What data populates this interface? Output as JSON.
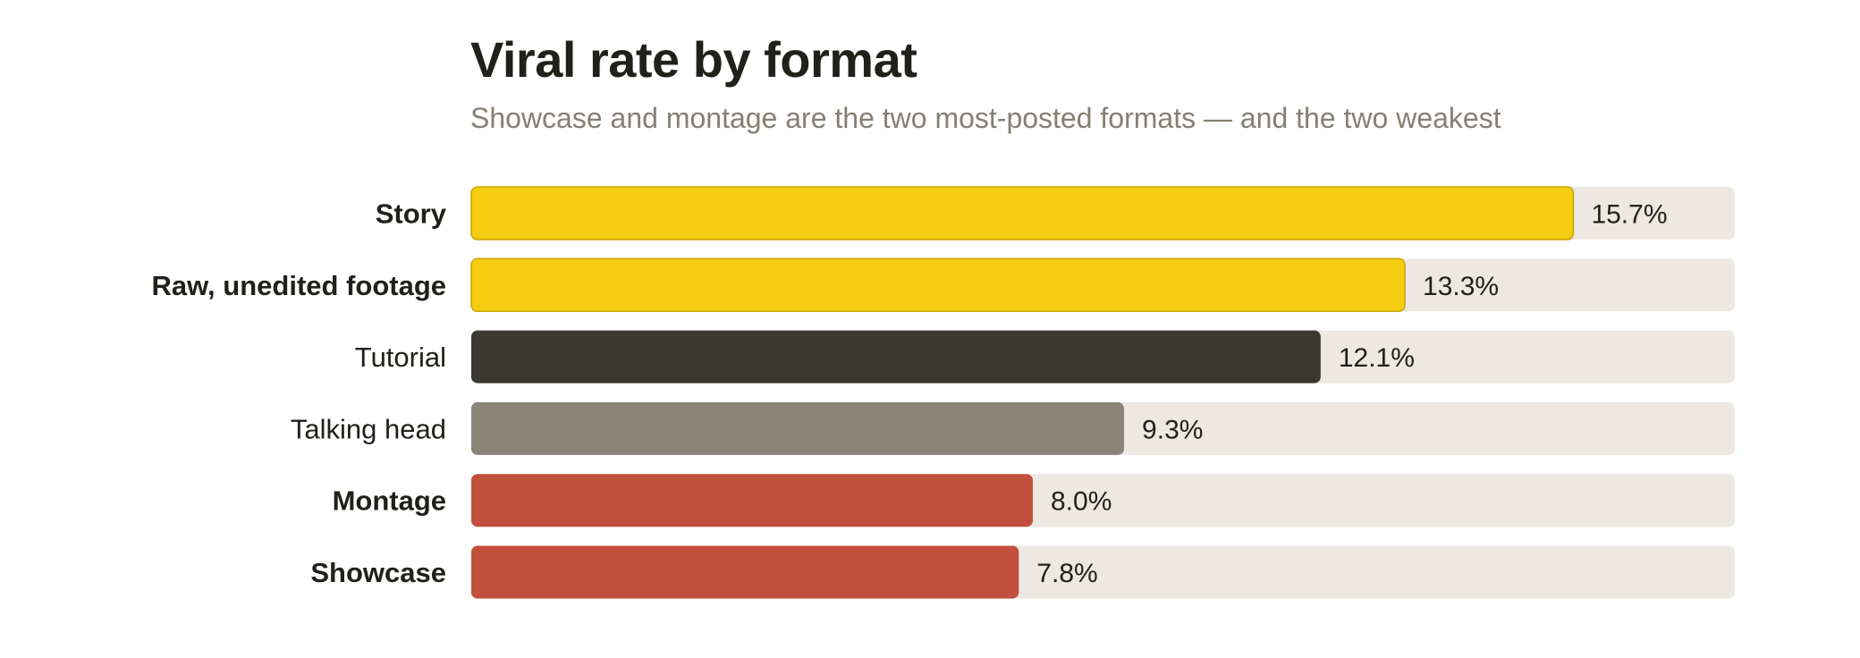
{
  "chart_data": {
    "type": "bar",
    "orientation": "horizontal",
    "title": "Viral rate by format",
    "subtitle": "Showcase and montage are the two most-posted formats — and the two weakest",
    "categories": [
      "Story",
      "Raw, unedited footage",
      "Tutorial",
      "Talking head",
      "Montage",
      "Showcase"
    ],
    "values": [
      15.7,
      13.3,
      12.1,
      9.3,
      8.0,
      7.8
    ],
    "value_labels": [
      "15.7%",
      "13.3%",
      "12.1%",
      "9.3%",
      "8.0%",
      "7.8%"
    ],
    "bold_labels": [
      true,
      true,
      false,
      false,
      true,
      true
    ],
    "colors": [
      "#f4cc10",
      "#f4cc10",
      "#3b3831",
      "#8b8579",
      "#c24f3b",
      "#c24f3b"
    ],
    "track_color": "#ede8e1",
    "xlim": [
      0,
      18
    ],
    "grid": false,
    "legend": "none"
  }
}
